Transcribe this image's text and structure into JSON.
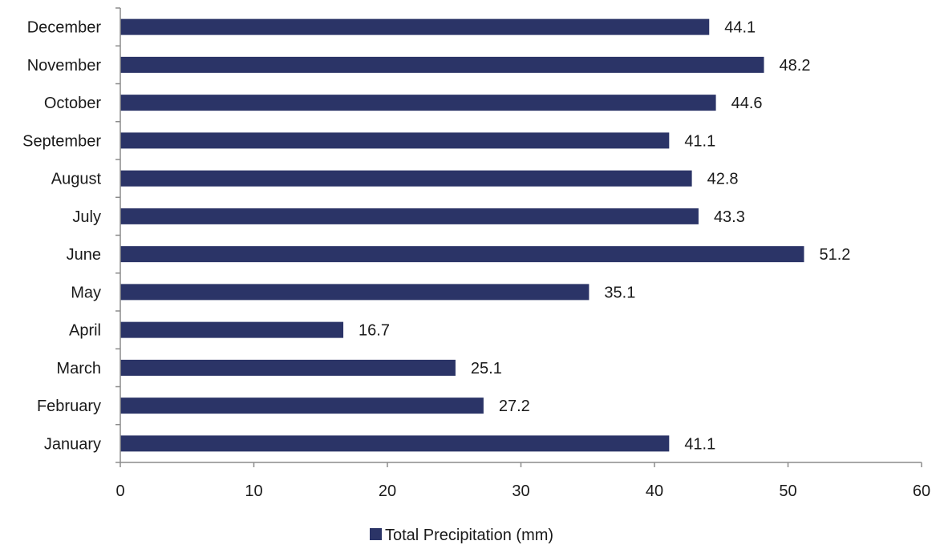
{
  "colors": {
    "bar": "#2b3467",
    "axis": "#8c8c8c",
    "text": "#1a1a1a",
    "background": "#ffffff"
  },
  "chart_data": {
    "type": "bar",
    "orientation": "horizontal",
    "categories": [
      "January",
      "February",
      "March",
      "April",
      "May",
      "June",
      "July",
      "August",
      "September",
      "October",
      "November",
      "December"
    ],
    "series": [
      {
        "name": "Total Precipitation (mm)",
        "values": [
          41.1,
          27.2,
          25.1,
          16.7,
          35.1,
          51.2,
          43.3,
          42.8,
          41.1,
          44.6,
          48.2,
          44.1
        ]
      }
    ],
    "xlim": [
      0,
      60
    ],
    "xticks": [
      0,
      10,
      20,
      30,
      40,
      50,
      60
    ],
    "data_labels": true,
    "grid": false,
    "legend": "bottom-center"
  }
}
